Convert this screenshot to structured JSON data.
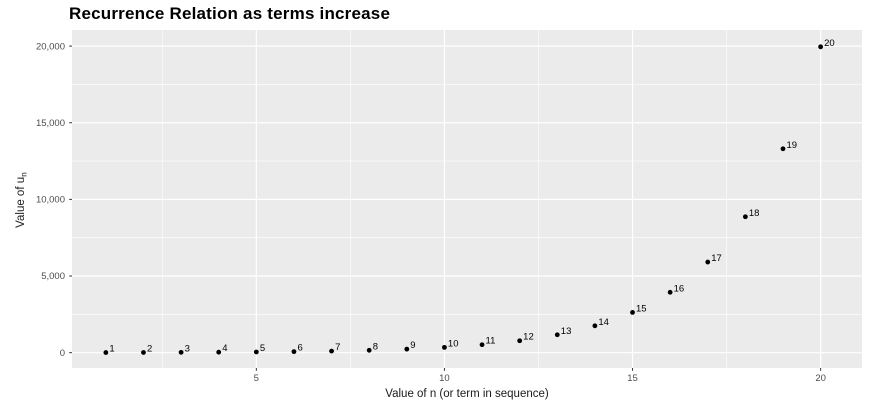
{
  "title": "Recurrence Relation as terms increase",
  "chart_data": {
    "type": "scatter",
    "title": "Recurrence Relation as terms increase",
    "xlabel": "Value of n (or term in sequence)",
    "ylabel_main": "Value of u",
    "ylabel_sub": "n",
    "x": [
      1,
      2,
      3,
      4,
      5,
      6,
      7,
      8,
      9,
      10,
      11,
      12,
      13,
      14,
      15,
      16,
      17,
      18,
      19,
      20
    ],
    "y": [
      9,
      13.5,
      20,
      30,
      46,
      68,
      102,
      154,
      231,
      346,
      519,
      778,
      1168,
      1752,
      2627,
      3941,
      5912,
      8867,
      13301,
      19952
    ],
    "point_labels": [
      "1",
      "2",
      "3",
      "4",
      "5",
      "6",
      "7",
      "8",
      "9",
      "10",
      "11",
      "12",
      "13",
      "14",
      "15",
      "16",
      "17",
      "18",
      "19",
      "20"
    ],
    "x_ticks": [
      5,
      10,
      15,
      20
    ],
    "x_tick_labels": [
      "5",
      "10",
      "15",
      "20"
    ],
    "y_ticks": [
      0,
      5000,
      10000,
      15000,
      20000
    ],
    "y_tick_labels": [
      "0",
      "5,000",
      "10,000",
      "15,000",
      "20,000"
    ],
    "x_minor": [
      2.5,
      7.5,
      12.5,
      17.5
    ],
    "y_minor": [
      2500,
      7500,
      12500,
      17500
    ],
    "xlim": [
      0.1,
      21.1
    ],
    "ylim": [
      -1000,
      21050
    ],
    "grid": true,
    "legend": false,
    "colors": {
      "page_bg": "#FFFFFF",
      "panel_bg": "#EBEBEB",
      "grid_major": "#FFFFFF",
      "grid_minor": "#FFFFFF",
      "point": "#000000",
      "point_label": "#000000",
      "tick_mark": "#333333",
      "tick_label": "#4D4D4D",
      "axis_title": "#1A1A1A",
      "title": "#000000"
    }
  }
}
